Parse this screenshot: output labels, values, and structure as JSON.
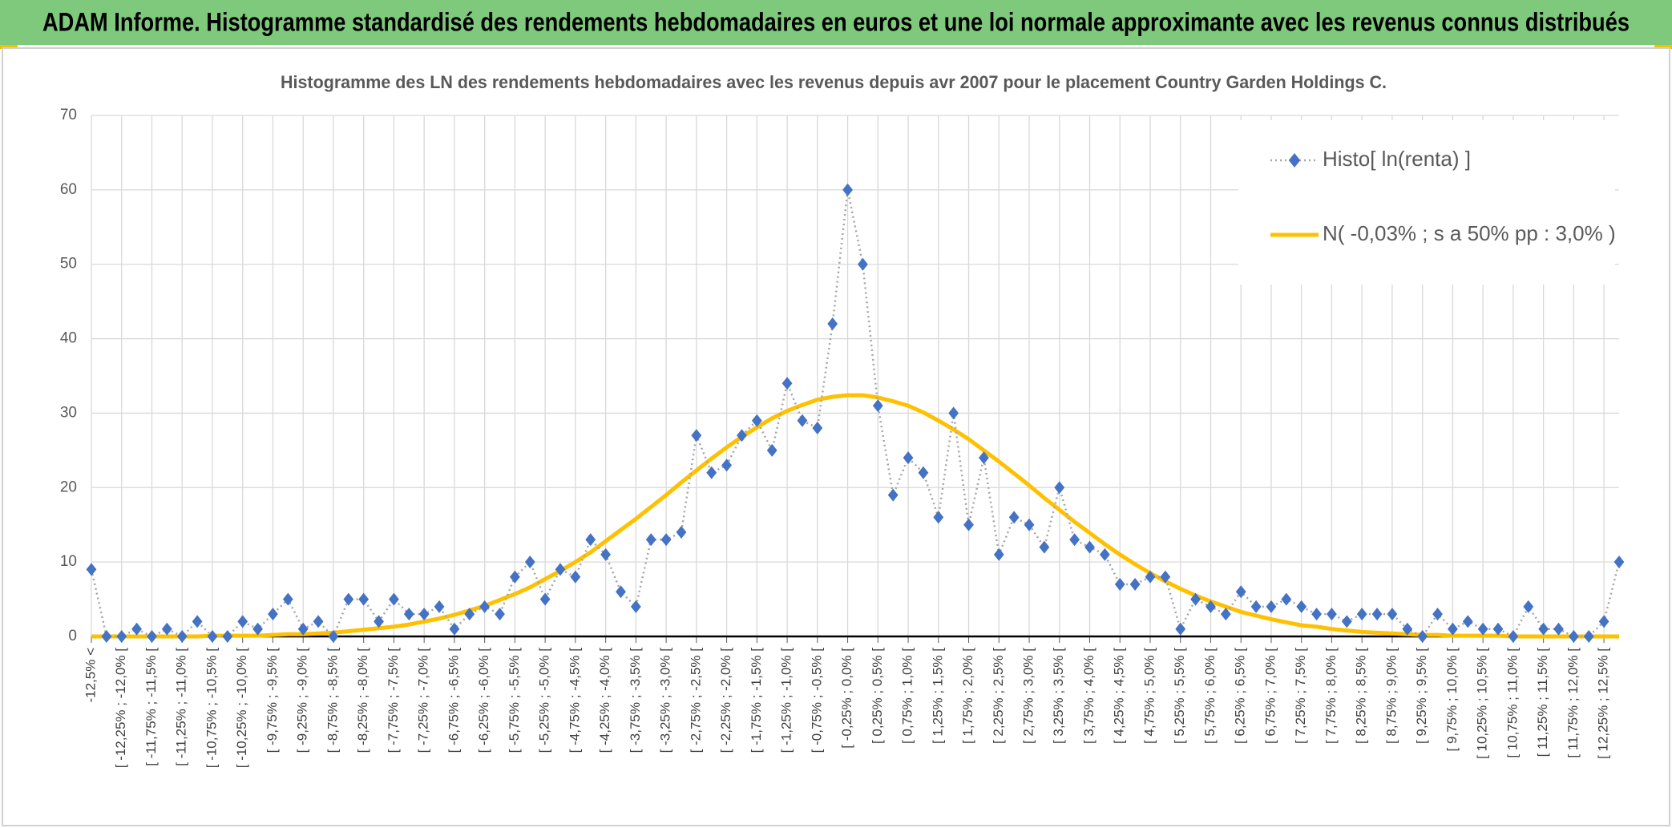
{
  "header": {
    "title": "ADAM Informe. Histogramme standardisé des rendements hebdomadaires en euros et une loi normale approximante avec les revenus connus distribués"
  },
  "chart_data": {
    "type": "line",
    "title": "Histogramme des LN des rendements hebdomadaires avec les revenus depuis avr 2007 pour le placement Country Garden Holdings C.",
    "categories": [
      "-12,5% <",
      null,
      "[ -12,25% ; -12,0% [",
      null,
      "[ -11,75% ; -11,5% [",
      null,
      "[ -11,25% ; -11,0% [",
      null,
      "[ -10,75% ; -10,5% [",
      null,
      "[ -10,25% ; -10,0% [",
      null,
      "[ -9,75% ; -9,5% [",
      null,
      "[ -9,25% ; -9,0% [",
      null,
      "[ -8,75% ; -8,5% [",
      null,
      "[ -8,25% ; -8,0% [",
      null,
      "[ -7,75% ; -7,5% [",
      null,
      "[ -7,25% ; -7,0% [",
      null,
      "[ -6,75% ; -6,5% [",
      null,
      "[ -6,25% ; -6,0% [",
      null,
      "[ -5,75% ; -5,5% [",
      null,
      "[ -5,25% ; -5,0% [",
      null,
      "[ -4,75% ; -4,5% [",
      null,
      "[ -4,25% ; -4,0% [",
      null,
      "[ -3,75% ; -3,5% [",
      null,
      "[ -3,25% ; -3,0% [",
      null,
      "[ -2,75% ; -2,5% [",
      null,
      "[ -2,25% ; -2,0% [",
      null,
      "[ -1,75% ; -1,5% [",
      null,
      "[ -1,25% ; -1,0% [",
      null,
      "[ -0,75% ; -0,5% [",
      null,
      "[ -0,25% ; 0,0% [",
      null,
      "[ 0,25% ; 0,5% [",
      null,
      "[ 0,75% ; 1,0% [",
      null,
      "[ 1,25% ; 1,5% [",
      null,
      "[ 1,75% ; 2,0% [",
      null,
      "[ 2,25% ; 2,5% [",
      null,
      "[ 2,75% ; 3,0% [",
      null,
      "[ 3,25% ; 3,5% [",
      null,
      "[ 3,75% ; 4,0% [",
      null,
      "[ 4,25% ; 4,5% [",
      null,
      "[ 4,75% ; 5,0% [",
      null,
      "[ 5,25% ; 5,5% [",
      null,
      "[ 5,75% ; 6,0% [",
      null,
      "[ 6,25% ; 6,5% [",
      null,
      "[ 6,75% ; 7,0% [",
      null,
      "[ 7,25% ; 7,5% [",
      null,
      "[ 7,75% ; 8,0% [",
      null,
      "[ 8,25% ; 8,5% [",
      null,
      "[ 8,75% ; 9,0% [",
      null,
      "[ 9,25% ; 9,5% [",
      null,
      "[ 9,75% ; 10,0% [",
      null,
      "[ 10,25% ; 10,5% [",
      null,
      "[ 10,75% ; 11,0% [",
      null,
      "[ 11,25% ; 11,5% [",
      null,
      "[ 11,75% ; 12,0% [",
      null,
      "[ 12,25% ; 12,5% [",
      null
    ],
    "series": [
      {
        "name": "Histo[ ln(renta) ]",
        "color": "#4472c4",
        "line_color": "#a5a5a5",
        "marker": "diamond",
        "values": [
          9,
          0,
          0,
          1,
          0,
          1,
          0,
          2,
          0,
          0,
          2,
          1,
          3,
          5,
          1,
          2,
          0,
          5,
          5,
          2,
          5,
          3,
          3,
          4,
          1,
          3,
          4,
          3,
          8,
          10,
          5,
          9,
          8,
          13,
          11,
          6,
          4,
          13,
          13,
          14,
          27,
          22,
          23,
          27,
          29,
          25,
          34,
          29,
          28,
          42,
          60,
          50,
          31,
          19,
          24,
          22,
          16,
          30,
          15,
          24,
          11,
          16,
          15,
          12,
          20,
          13,
          12,
          11,
          7,
          7,
          8,
          8,
          1,
          5,
          4,
          3,
          6,
          4,
          4,
          5,
          4,
          3,
          3,
          2,
          3,
          3,
          3,
          1,
          0,
          3,
          1,
          2,
          1,
          1,
          0,
          4,
          1,
          1,
          0,
          0,
          2,
          10
        ]
      },
      {
        "name": "N( -0,03% ; s a 50% pp : 3,0% )",
        "color": "#ffc000",
        "marker": "none",
        "values": [
          0,
          0,
          0,
          0,
          0,
          0,
          0,
          0,
          0.1,
          0.1,
          0.1,
          0.1,
          0.2,
          0.3,
          0.3,
          0.4,
          0.5,
          0.7,
          0.9,
          1.1,
          1.3,
          1.6,
          2.0,
          2.4,
          2.9,
          3.5,
          4.1,
          4.9,
          5.7,
          6.6,
          7.7,
          8.8,
          10.0,
          11.3,
          12.8,
          14.3,
          15.8,
          17.4,
          19.0,
          20.7,
          22.3,
          23.9,
          25.4,
          26.8,
          28.1,
          29.3,
          30.3,
          31.1,
          31.8,
          32.2,
          32.4,
          32.4,
          32.1,
          31.6,
          31.0,
          30.1,
          29.0,
          27.8,
          26.5,
          25.0,
          23.5,
          21.9,
          20.3,
          18.6,
          17.0,
          15.4,
          13.9,
          12.4,
          11.0,
          9.7,
          8.5,
          7.4,
          6.4,
          5.5,
          4.7,
          4.0,
          3.3,
          2.8,
          2.3,
          1.9,
          1.5,
          1.3,
          1.0,
          0.8,
          0.6,
          0.5,
          0.4,
          0.3,
          0.2,
          0.2,
          0.1,
          0.1,
          0.1,
          0.1,
          0,
          0,
          0,
          0,
          0,
          0,
          0,
          0
        ]
      }
    ],
    "ylim": [
      0,
      70
    ],
    "yticks": [
      0,
      10,
      20,
      30,
      40,
      50,
      60,
      70
    ],
    "grid": true,
    "legend": "top-right"
  }
}
